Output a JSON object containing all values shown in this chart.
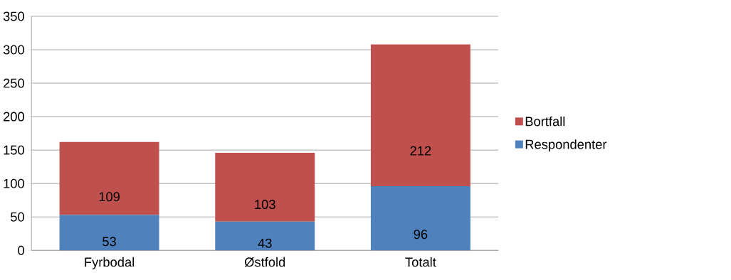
{
  "chart_data": {
    "type": "bar",
    "stacked": true,
    "categories": [
      "Fyrbodal",
      "Østfold",
      "Totalt"
    ],
    "series": [
      {
        "name": "Respondenter",
        "color": "#4f81bd",
        "values": [
          53,
          43,
          96
        ]
      },
      {
        "name": "Bortfall",
        "color": "#c0504d",
        "values": [
          109,
          103,
          212
        ]
      }
    ],
    "ylim": [
      0,
      350
    ],
    "yticks": [
      0,
      50,
      100,
      150,
      200,
      250,
      300,
      350
    ],
    "grid": "y",
    "legend": "right",
    "data_labels": true
  }
}
